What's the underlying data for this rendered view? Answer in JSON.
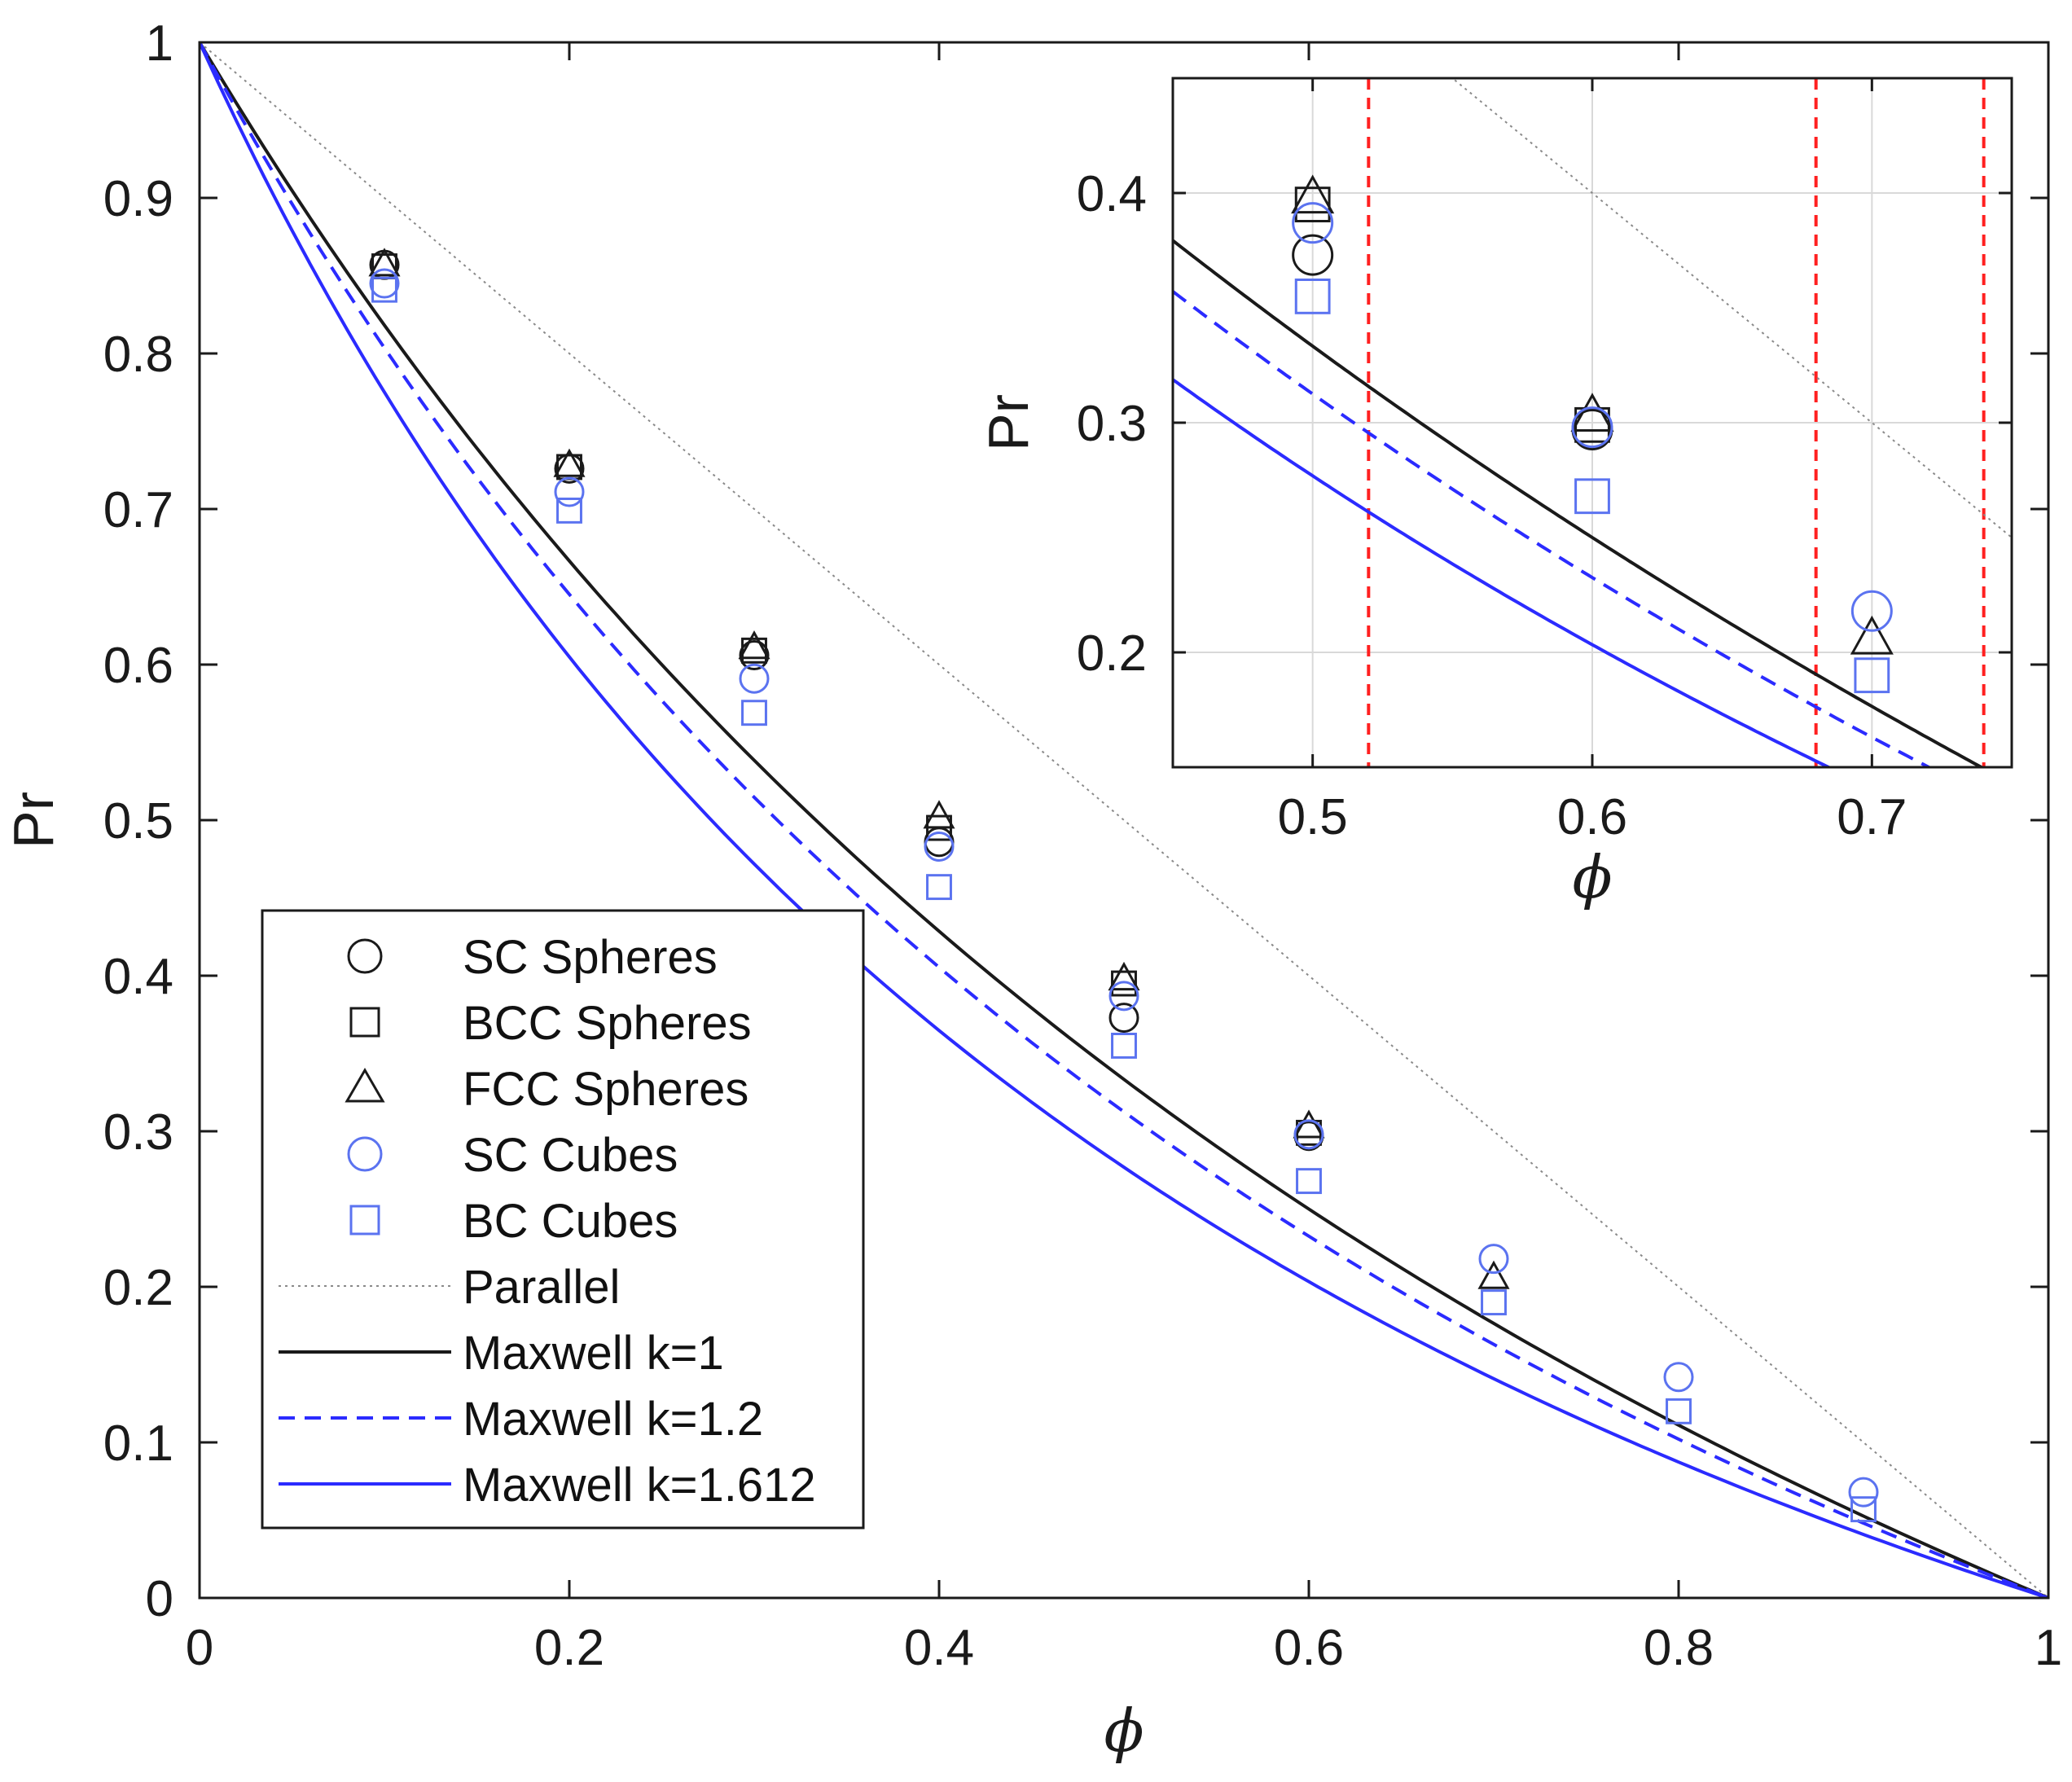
{
  "colors": {
    "black": "#1a1a1a",
    "blue": "#2b2bff",
    "light_blue": "#5b73f0",
    "parallel": "#8a8a8a",
    "red": "#ff2020",
    "grid": "#d9d9d9"
  },
  "chart_data": [
    {
      "type": "line",
      "panel": "main",
      "xlabel": "ϕ",
      "ylabel": "Pr",
      "xlim": [
        0,
        1
      ],
      "ylim": [
        0,
        1
      ],
      "x_ticks": [
        "0",
        "0.2",
        "0.4",
        "0.6",
        "0.8",
        "1"
      ],
      "x_tick_values": [
        0,
        0.2,
        0.4,
        0.6,
        0.8,
        1
      ],
      "y_ticks": [
        "0",
        "0.1",
        "0.2",
        "0.3",
        "0.4",
        "0.5",
        "0.6",
        "0.7",
        "0.8",
        "0.9",
        "1"
      ],
      "y_tick_values": [
        0,
        0.1,
        0.2,
        0.3,
        0.4,
        0.5,
        0.6,
        0.7,
        0.8,
        0.9,
        1
      ],
      "grid": false,
      "legend_position": "lower-left",
      "series": [
        {
          "name": "SC Spheres",
          "marker": "circle",
          "color": "black",
          "x": [
            0.1,
            0.2,
            0.3,
            0.4,
            0.5,
            0.6
          ],
          "y": [
            0.857,
            0.726,
            0.606,
            0.486,
            0.373,
            0.297
          ]
        },
        {
          "name": "BCC Spheres",
          "marker": "square",
          "color": "black",
          "x": [
            0.1,
            0.2,
            0.3,
            0.4,
            0.5,
            0.6
          ],
          "y": [
            0.856,
            0.727,
            0.609,
            0.495,
            0.395,
            0.299
          ]
        },
        {
          "name": "FCC Spheres",
          "marker": "triangle",
          "color": "black",
          "x": [
            0.1,
            0.2,
            0.3,
            0.4,
            0.5,
            0.6,
            0.7
          ],
          "y": [
            0.857,
            0.728,
            0.611,
            0.502,
            0.398,
            0.303,
            0.206
          ]
        },
        {
          "name": "SC Cubes",
          "marker": "circle",
          "color": "light_blue",
          "x": [
            0.1,
            0.2,
            0.3,
            0.4,
            0.5,
            0.6,
            0.7,
            0.8,
            0.9
          ],
          "y": [
            0.845,
            0.711,
            0.591,
            0.483,
            0.387,
            0.298,
            0.218,
            0.142,
            0.068
          ]
        },
        {
          "name": "BC Cubes",
          "marker": "square",
          "color": "light_blue",
          "x": [
            0.1,
            0.2,
            0.3,
            0.4,
            0.5,
            0.6,
            0.7,
            0.8,
            0.9
          ],
          "y": [
            0.841,
            0.699,
            0.569,
            0.457,
            0.355,
            0.268,
            0.19,
            0.12,
            0.057
          ]
        },
        {
          "name": "Parallel",
          "style": "dotted-line",
          "color": "parallel",
          "formula": "1 - phi"
        },
        {
          "name": "Maxwell k=1",
          "style": "solid-line",
          "color": "black",
          "k": 1
        },
        {
          "name": "Maxwell k=1.2",
          "style": "dashed-line",
          "color": "blue",
          "k": 1.2
        },
        {
          "name": "Maxwell k=1.612",
          "style": "solid-line",
          "color": "blue",
          "k": 1.612
        }
      ]
    },
    {
      "type": "line",
      "panel": "inset",
      "xlabel": "ϕ",
      "ylabel": "Pr",
      "xlim": [
        0.45,
        0.75
      ],
      "ylim": [
        0.15,
        0.45
      ],
      "x_ticks": [
        "0.5",
        "0.6",
        "0.7"
      ],
      "x_tick_values": [
        0.5,
        0.6,
        0.7
      ],
      "y_ticks": [
        "0.2",
        "0.3",
        "0.4"
      ],
      "y_tick_values": [
        0.2,
        0.3,
        0.4
      ],
      "grid": true,
      "vertical_reference_lines": [
        0.52,
        0.68,
        0.74
      ],
      "series_same_as": "main"
    }
  ],
  "legend": [
    {
      "label": "SC Spheres",
      "marker": "circle",
      "color": "black"
    },
    {
      "label": "BCC Spheres",
      "marker": "square",
      "color": "black"
    },
    {
      "label": "FCC Spheres",
      "marker": "triangle",
      "color": "black"
    },
    {
      "label": "SC Cubes",
      "marker": "circle",
      "color": "light_blue"
    },
    {
      "label": "BC Cubes",
      "marker": "square",
      "color": "light_blue"
    },
    {
      "label": "Parallel",
      "line": "dotted",
      "color": "parallel"
    },
    {
      "label": "Maxwell k=1",
      "line": "solid",
      "color": "black"
    },
    {
      "label": "Maxwell k=1.2",
      "line": "dashed",
      "color": "blue"
    },
    {
      "label": "Maxwell k=1.612",
      "line": "solid",
      "color": "blue"
    }
  ]
}
